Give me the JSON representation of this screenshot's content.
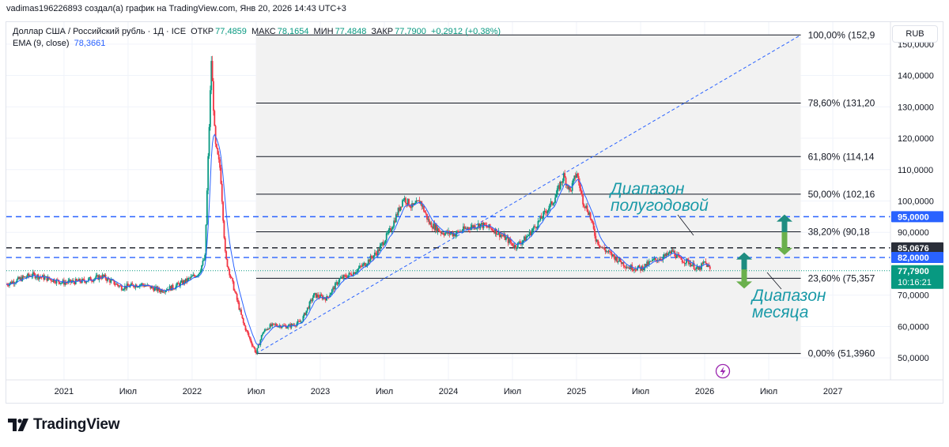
{
  "header": {
    "attribution": "vadimas196226893 создал(а) график на TradingView.com, Янв 20, 2026 14:43 UTC+3"
  },
  "legend": {
    "symbol": "Доллар США / Российский рубль · 1Д · ICE",
    "open_label": "ОТКР",
    "open_value": "77,4859",
    "high_label": "МАКС",
    "high_value": "78,1654",
    "low_label": "МИН",
    "low_value": "77,4848",
    "close_label": "ЗАКР",
    "close_value": "77,7900",
    "change": "+0,2912 (+0,38%)",
    "ema_label": "EMA (9, close)",
    "ema_value": "78,3661"
  },
  "currency_button": "RUB",
  "brand": {
    "name": "TradingView"
  },
  "annotations": {
    "half_year": [
      "Диапазон",
      "полугодовой"
    ],
    "month": [
      "Диапазон",
      "месяца"
    ]
  },
  "colors": {
    "up": "#089981",
    "down": "#f23645",
    "accent": "#2962ff",
    "annotation": "#1a9aa8",
    "arrow_up": "#1e8c80",
    "arrow_down": "#6ab04c"
  },
  "chart_data": {
    "type": "candlestick",
    "title": "Доллар США / Российский рубль · 1Д · ICE",
    "x_start": 2020.55,
    "x_end": 2027.45,
    "ylim": [
      43,
      157
    ],
    "x_ticks": [
      {
        "t": 2021.0,
        "label": "2021"
      },
      {
        "t": 2021.5,
        "label": "Июл"
      },
      {
        "t": 2022.0,
        "label": "2022"
      },
      {
        "t": 2022.5,
        "label": "Июл"
      },
      {
        "t": 2023.0,
        "label": "2023"
      },
      {
        "t": 2023.5,
        "label": "Июл"
      },
      {
        "t": 2024.0,
        "label": "2024"
      },
      {
        "t": 2024.5,
        "label": "Июл"
      },
      {
        "t": 2025.0,
        "label": "2025"
      },
      {
        "t": 2025.5,
        "label": "Июл"
      },
      {
        "t": 2026.0,
        "label": "2026"
      },
      {
        "t": 2026.5,
        "label": "Июл"
      },
      {
        "t": 2027.0,
        "label": "2027"
      }
    ],
    "y_ticks": [
      {
        "v": 150,
        "label": "150,0000"
      },
      {
        "v": 140,
        "label": "140,0000"
      },
      {
        "v": 130,
        "label": "130,0000"
      },
      {
        "v": 120,
        "label": "120,0000"
      },
      {
        "v": 110,
        "label": "110,0000"
      },
      {
        "v": 100,
        "label": "100,0000"
      },
      {
        "v": 90,
        "label": "90,0000"
      },
      {
        "v": 70,
        "label": "70,0000"
      },
      {
        "v": 60,
        "label": "60,0000"
      },
      {
        "v": 50,
        "label": "50,0000"
      }
    ],
    "price_series": [
      {
        "t": 2020.55,
        "v": 73.5
      },
      {
        "t": 2020.75,
        "v": 76.5
      },
      {
        "t": 2020.9,
        "v": 75.0
      },
      {
        "t": 2021.0,
        "v": 74.0
      },
      {
        "t": 2021.15,
        "v": 74.5
      },
      {
        "t": 2021.3,
        "v": 76.0
      },
      {
        "t": 2021.45,
        "v": 72.5
      },
      {
        "t": 2021.6,
        "v": 73.5
      },
      {
        "t": 2021.75,
        "v": 71.5
      },
      {
        "t": 2021.85,
        "v": 72.5
      },
      {
        "t": 2021.95,
        "v": 74.5
      },
      {
        "t": 2022.05,
        "v": 77.0
      },
      {
        "t": 2022.1,
        "v": 82.0
      },
      {
        "t": 2022.15,
        "v": 145.0
      },
      {
        "t": 2022.18,
        "v": 118.0
      },
      {
        "t": 2022.22,
        "v": 110.0
      },
      {
        "t": 2022.26,
        "v": 82.0
      },
      {
        "t": 2022.32,
        "v": 73.0
      },
      {
        "t": 2022.4,
        "v": 61.0
      },
      {
        "t": 2022.45,
        "v": 56.0
      },
      {
        "t": 2022.5,
        "v": 51.5
      },
      {
        "t": 2022.55,
        "v": 58.0
      },
      {
        "t": 2022.6,
        "v": 60.0
      },
      {
        "t": 2022.65,
        "v": 60.5
      },
      {
        "t": 2022.75,
        "v": 60.0
      },
      {
        "t": 2022.85,
        "v": 61.5
      },
      {
        "t": 2022.95,
        "v": 70.0
      },
      {
        "t": 2023.05,
        "v": 69.0
      },
      {
        "t": 2023.15,
        "v": 75.0
      },
      {
        "t": 2023.25,
        "v": 77.0
      },
      {
        "t": 2023.35,
        "v": 80.0
      },
      {
        "t": 2023.45,
        "v": 84.0
      },
      {
        "t": 2023.55,
        "v": 91.0
      },
      {
        "t": 2023.6,
        "v": 96.0
      },
      {
        "t": 2023.65,
        "v": 101.0
      },
      {
        "t": 2023.72,
        "v": 98.0
      },
      {
        "t": 2023.78,
        "v": 100.0
      },
      {
        "t": 2023.85,
        "v": 93.0
      },
      {
        "t": 2023.95,
        "v": 90.0
      },
      {
        "t": 2024.05,
        "v": 89.5
      },
      {
        "t": 2024.15,
        "v": 91.5
      },
      {
        "t": 2024.25,
        "v": 92.5
      },
      {
        "t": 2024.35,
        "v": 91.0
      },
      {
        "t": 2024.45,
        "v": 88.0
      },
      {
        "t": 2024.52,
        "v": 85.5
      },
      {
        "t": 2024.6,
        "v": 88.0
      },
      {
        "t": 2024.68,
        "v": 92.0
      },
      {
        "t": 2024.75,
        "v": 96.0
      },
      {
        "t": 2024.82,
        "v": 100.0
      },
      {
        "t": 2024.9,
        "v": 108.0
      },
      {
        "t": 2024.95,
        "v": 103.0
      },
      {
        "t": 2025.0,
        "v": 109.0
      },
      {
        "t": 2025.05,
        "v": 100.0
      },
      {
        "t": 2025.1,
        "v": 96.0
      },
      {
        "t": 2025.15,
        "v": 88.0
      },
      {
        "t": 2025.2,
        "v": 85.0
      },
      {
        "t": 2025.3,
        "v": 82.0
      },
      {
        "t": 2025.4,
        "v": 79.0
      },
      {
        "t": 2025.5,
        "v": 78.5
      },
      {
        "t": 2025.6,
        "v": 81.0
      },
      {
        "t": 2025.7,
        "v": 82.5
      },
      {
        "t": 2025.75,
        "v": 84.0
      },
      {
        "t": 2025.8,
        "v": 81.5
      },
      {
        "t": 2025.88,
        "v": 80.5
      },
      {
        "t": 2025.95,
        "v": 78.0
      },
      {
        "t": 2026.0,
        "v": 80.5
      },
      {
        "t": 2026.05,
        "v": 77.79
      }
    ],
    "ema_period": 9,
    "fib_retracement": {
      "t_start": 2022.5,
      "t_end": 2026.75,
      "levels": [
        {
          "pct": "100,00%",
          "label": "100,00% (152,9",
          "v": 152.9
        },
        {
          "pct": "78,60%",
          "label": "78,60% (131,20",
          "v": 131.2
        },
        {
          "pct": "61,80%",
          "label": "61,80% (114,14",
          "v": 114.14
        },
        {
          "pct": "50,00%",
          "label": "50,00% (102,16",
          "v": 102.16
        },
        {
          "pct": "38,20%",
          "label": "38,20% (90,18",
          "v": 90.18
        },
        {
          "pct": "23,60%",
          "label": "23,60% (75,357",
          "v": 75.357
        },
        {
          "pct": "0,00%",
          "label": "0,00% (51,3960",
          "v": 51.396
        }
      ]
    },
    "trend_line": {
      "t1": 2022.5,
      "v1": 51.4,
      "t2": 2026.75,
      "v2": 152.9
    },
    "horizontal_lines": [
      {
        "v": 95.0,
        "label": "95,0000",
        "style": "dashed",
        "color": "#2962ff"
      },
      {
        "v": 85.0676,
        "label": "85,0676",
        "style": "dashed",
        "color": "#131722"
      },
      {
        "v": 82.0,
        "label": "82,0000",
        "style": "dashed",
        "color": "#2962ff"
      }
    ],
    "last_price": {
      "v": 77.79,
      "label": "77,7900",
      "countdown": "10:16:21"
    }
  }
}
